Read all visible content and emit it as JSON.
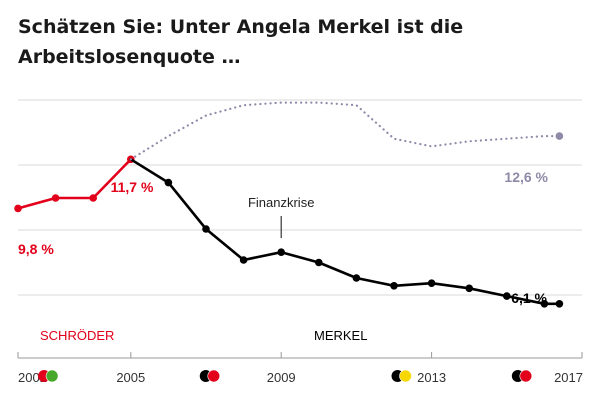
{
  "chart_data": {
    "type": "line",
    "title": "Schätzen Sie: Unter Angela Merkel ist die Arbeitslosenquote …",
    "xlabel": "",
    "ylabel": "",
    "x_ticks": [
      "2002",
      "2005",
      "2009",
      "2013",
      "2017"
    ],
    "x_range": [
      2002,
      2017
    ],
    "ylim": [
      4,
      14
    ],
    "grid": true,
    "legend": "none",
    "series": [
      {
        "role": "schroeder",
        "color": "#e2001a",
        "style": "solid",
        "x": [
          2002,
          2003,
          2004,
          2005
        ],
        "values": [
          9.8,
          10.2,
          10.2,
          11.7
        ]
      },
      {
        "role": "merkel_actual",
        "color": "#000000",
        "style": "solid",
        "x": [
          2005,
          2006,
          2007,
          2008,
          2009,
          2010,
          2011,
          2012,
          2013,
          2014,
          2015,
          2016,
          2017
        ],
        "values": [
          11.7,
          10.8,
          9.0,
          7.8,
          8.1,
          7.7,
          7.1,
          6.8,
          6.9,
          6.7,
          6.4,
          6.1,
          6.1
        ],
        "end_x": 2016.4
      },
      {
        "role": "estimate",
        "color": "#8e8aa8",
        "style": "dotted",
        "x": [
          2005,
          2006,
          2007,
          2008,
          2009,
          2010,
          2011,
          2012,
          2013,
          2014,
          2015,
          2016,
          2017
        ],
        "values": [
          11.7,
          12.6,
          13.4,
          13.8,
          13.9,
          13.9,
          13.8,
          12.5,
          12.2,
          12.4,
          12.5,
          12.6,
          12.6
        ],
        "end_x": 2016.4
      }
    ],
    "data_labels": [
      {
        "text": "9,8 %",
        "color": "#e2001a"
      },
      {
        "text": "11,7 %",
        "color": "#e2001a"
      },
      {
        "text": "12,6 %",
        "color": "#8e8aa8"
      },
      {
        "text": "6,1 %",
        "color": "#000000"
      }
    ],
    "annotations": {
      "finanzkrise": {
        "text": "Finanzkrise",
        "x": 2009
      },
      "schroeder": {
        "text": "SCHRÖDER",
        "color": "#e2001a"
      },
      "merkel": {
        "text": "MERKEL",
        "color": "#000000"
      }
    },
    "party_icons": [
      {
        "colors": [
          "#e2001a",
          "#46a72b"
        ]
      },
      {
        "colors": [
          "#000000",
          "#e2001a"
        ]
      },
      {
        "colors": [
          "#000000",
          "#f7d700"
        ]
      },
      {
        "colors": [
          "#000000",
          "#e2001a"
        ]
      }
    ]
  }
}
